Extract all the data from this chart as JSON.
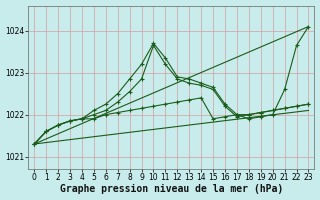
{
  "title": "Graphe pression niveau de la mer (hPa)",
  "bg_color": "#c8ecec",
  "grid_color": "#d4a0a0",
  "line_color": "#1a5c1a",
  "xlim": [
    -0.5,
    23.5
  ],
  "ylim": [
    1020.7,
    1024.6
  ],
  "yticks": [
    1021,
    1022,
    1023,
    1024
  ],
  "xticks": [
    0,
    1,
    2,
    3,
    4,
    5,
    6,
    7,
    8,
    9,
    10,
    11,
    12,
    13,
    14,
    15,
    16,
    17,
    18,
    19,
    20,
    21,
    22,
    23
  ],
  "series": [
    {
      "x": [
        0,
        23
      ],
      "y": [
        1021.3,
        1022.1
      ],
      "markers": false,
      "dashed": false
    },
    {
      "x": [
        0,
        23
      ],
      "y": [
        1021.3,
        1024.1
      ],
      "markers": false,
      "dashed": false
    },
    {
      "x": [
        0,
        1,
        2,
        3,
        4,
        5,
        6,
        7,
        8,
        9,
        10,
        11,
        12,
        13,
        14,
        15,
        16,
        17,
        18,
        19,
        20,
        21,
        22,
        23
      ],
      "y": [
        1021.3,
        1021.6,
        1021.75,
        1021.85,
        1021.9,
        1021.9,
        1022.0,
        1022.05,
        1022.1,
        1022.15,
        1022.2,
        1022.25,
        1022.3,
        1022.35,
        1022.4,
        1021.9,
        1021.95,
        1022.0,
        1022.0,
        1022.05,
        1022.1,
        1022.15,
        1022.2,
        1022.25
      ],
      "markers": true,
      "dashed": false
    },
    {
      "x": [
        0,
        1,
        2,
        3,
        4,
        5,
        6,
        7,
        8,
        9,
        10,
        11,
        12,
        13,
        14,
        15,
        16,
        17,
        18,
        19,
        20,
        21,
        22,
        23
      ],
      "y": [
        1021.3,
        1021.6,
        1021.75,
        1021.85,
        1021.9,
        1022.0,
        1022.1,
        1022.3,
        1022.55,
        1022.85,
        1023.65,
        1023.2,
        1022.85,
        1022.75,
        1022.7,
        1022.6,
        1022.2,
        1021.95,
        1022.0,
        1022.05,
        1022.1,
        1022.15,
        1022.2,
        1022.25
      ],
      "markers": true,
      "dashed": false
    },
    {
      "x": [
        0,
        1,
        2,
        3,
        4,
        5,
        6,
        7,
        8,
        9,
        10,
        11,
        12,
        13,
        14,
        15,
        16,
        17,
        18,
        19,
        20,
        21,
        22,
        23
      ],
      "y": [
        1021.3,
        1021.6,
        1021.75,
        1021.85,
        1021.9,
        1022.1,
        1022.25,
        1022.5,
        1022.85,
        1023.2,
        1023.7,
        1023.35,
        1022.9,
        1022.85,
        1022.75,
        1022.65,
        1022.25,
        1022.0,
        1021.9,
        1021.95,
        1022.0,
        1022.6,
        1023.65,
        1024.1
      ],
      "markers": true,
      "dashed": false
    }
  ],
  "xlabel_fontsize": 7,
  "tick_fontsize": 5.5
}
